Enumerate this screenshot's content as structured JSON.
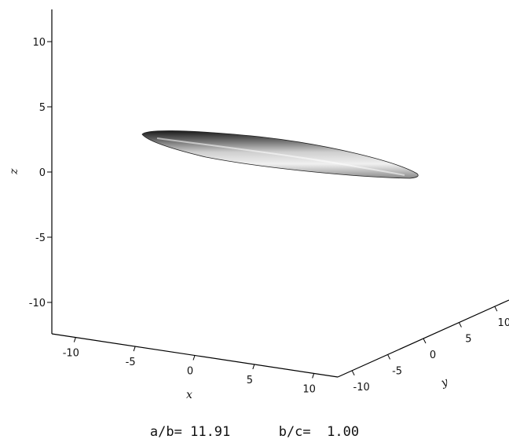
{
  "chart_data": {
    "type": "surface-3d",
    "shape": "ellipsoid",
    "axes": {
      "x": {
        "label": "x",
        "range": [
          -12,
          12
        ],
        "ticks": [
          -10,
          -5,
          0,
          5,
          10
        ]
      },
      "y": {
        "label": "y",
        "range": [
          -12,
          12
        ],
        "ticks": [
          -10,
          -5,
          0,
          5,
          10
        ]
      },
      "z": {
        "label": "z",
        "range": [
          -12,
          12
        ],
        "ticks": [
          10,
          5,
          0,
          -5,
          -10
        ]
      }
    },
    "grid": false,
    "legend": null,
    "surface_color": "#9a9a9a",
    "caption": {
      "ab_label": "a/b=",
      "ab_value": "11.91",
      "bc_label": "b/c=",
      "bc_value": "1.00"
    }
  }
}
